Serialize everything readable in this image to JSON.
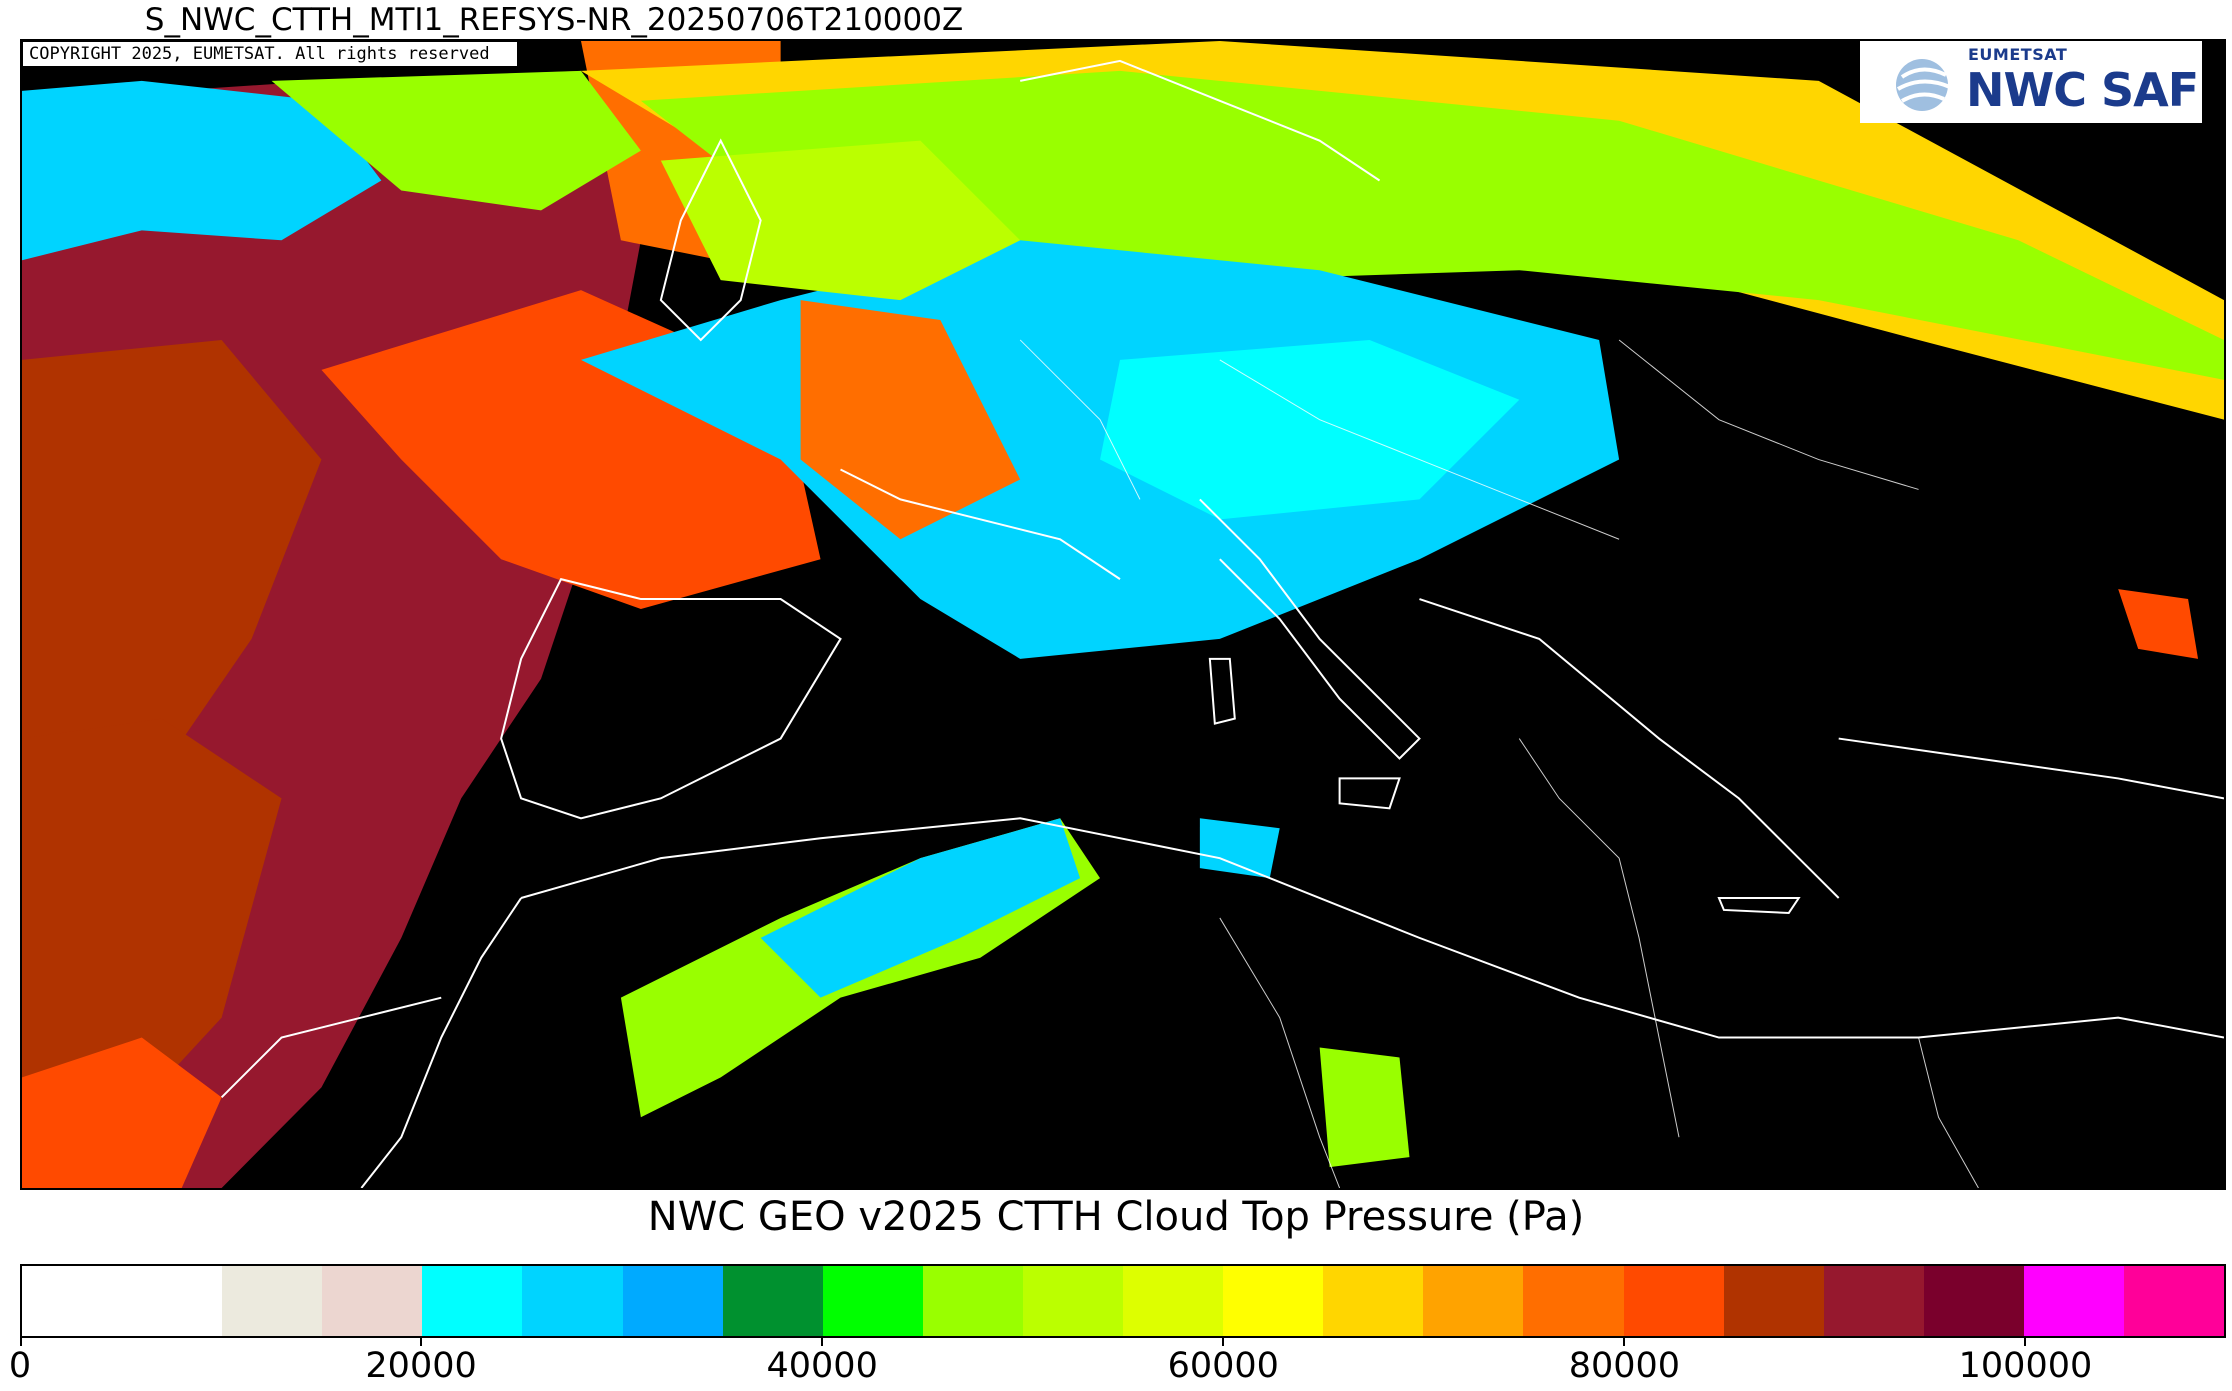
{
  "header": {
    "product_title": "S_NWC_CTTH_MTI1_REFSYS-NR_20250706T210000Z",
    "copyright": "COPYRIGHT 2025, EUMETSAT. All rights reserved"
  },
  "logo": {
    "org": "EUMETSAT",
    "name": "NWC SAF",
    "colors": {
      "text": "#1b3b8c",
      "globe": "#9fbfe0"
    }
  },
  "map": {
    "background": "#000000",
    "coastline_color": "#ffffff"
  },
  "colorbar": {
    "title": "NWC GEO v2025 CTTH Cloud Top Pressure (Pa)",
    "min": 0,
    "max": 110000,
    "bins": [
      {
        "from": 0,
        "to": 10000,
        "color": "#ffffff"
      },
      {
        "from": 10000,
        "to": 15000,
        "color": "#eceade"
      },
      {
        "from": 15000,
        "to": 20000,
        "color": "#ecd6d0"
      },
      {
        "from": 20000,
        "to": 25000,
        "color": "#00ffff"
      },
      {
        "from": 25000,
        "to": 30000,
        "color": "#00d4ff"
      },
      {
        "from": 30000,
        "to": 35000,
        "color": "#00aaff"
      },
      {
        "from": 35000,
        "to": 40000,
        "color": "#00912f"
      },
      {
        "from": 40000,
        "to": 45000,
        "color": "#00ff00"
      },
      {
        "from": 45000,
        "to": 50000,
        "color": "#99ff00"
      },
      {
        "from": 50000,
        "to": 55000,
        "color": "#bbff00"
      },
      {
        "from": 55000,
        "to": 60000,
        "color": "#ddff00"
      },
      {
        "from": 60000,
        "to": 65000,
        "color": "#ffff00"
      },
      {
        "from": 65000,
        "to": 70000,
        "color": "#ffd600"
      },
      {
        "from": 70000,
        "to": 75000,
        "color": "#ffa300"
      },
      {
        "from": 75000,
        "to": 80000,
        "color": "#ff6e00"
      },
      {
        "from": 80000,
        "to": 85000,
        "color": "#ff4a00"
      },
      {
        "from": 85000,
        "to": 90000,
        "color": "#b03300"
      },
      {
        "from": 90000,
        "to": 95000,
        "color": "#96182e"
      },
      {
        "from": 95000,
        "to": 100000,
        "color": "#7a002c"
      },
      {
        "from": 100000,
        "to": 105000,
        "color": "#ff00ff"
      },
      {
        "from": 105000,
        "to": 110000,
        "color": "#ff0099"
      }
    ],
    "tick_values": [
      0,
      20000,
      40000,
      60000,
      80000,
      100000
    ],
    "tick_labels": [
      "0",
      "20000",
      "40000",
      "60000",
      "80000",
      "100000"
    ]
  }
}
